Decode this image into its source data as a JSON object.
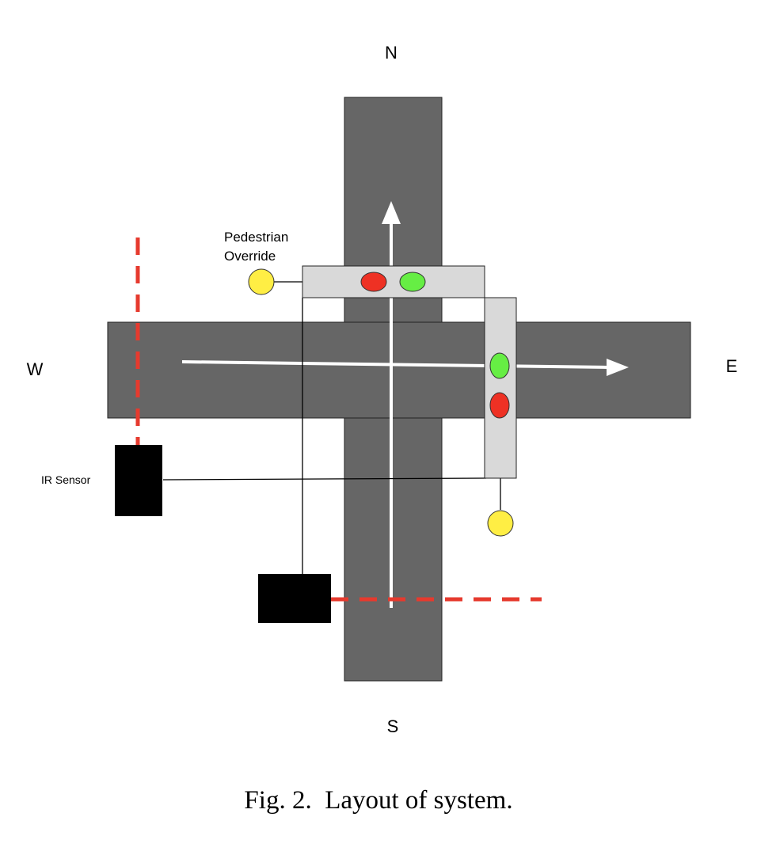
{
  "directions": {
    "north": "N",
    "south": "S",
    "east": "E",
    "west": "W"
  },
  "labels": {
    "pedestrian_override_line1": "Pedestrian",
    "pedestrian_override_line2": "Override",
    "ir_sensor": "IR Sensor"
  },
  "caption": "Fig. 2.  Layout of system.",
  "colors": {
    "road": "#666666",
    "signal_housing": "#d9d9d9",
    "red_light": "#ee3124",
    "green_light": "#66ee44",
    "pedestrian_button": "#ffee44",
    "sensor": "#000000",
    "sensor_beam": "#e63a2e",
    "traffic_arrow": "#ffffff"
  }
}
